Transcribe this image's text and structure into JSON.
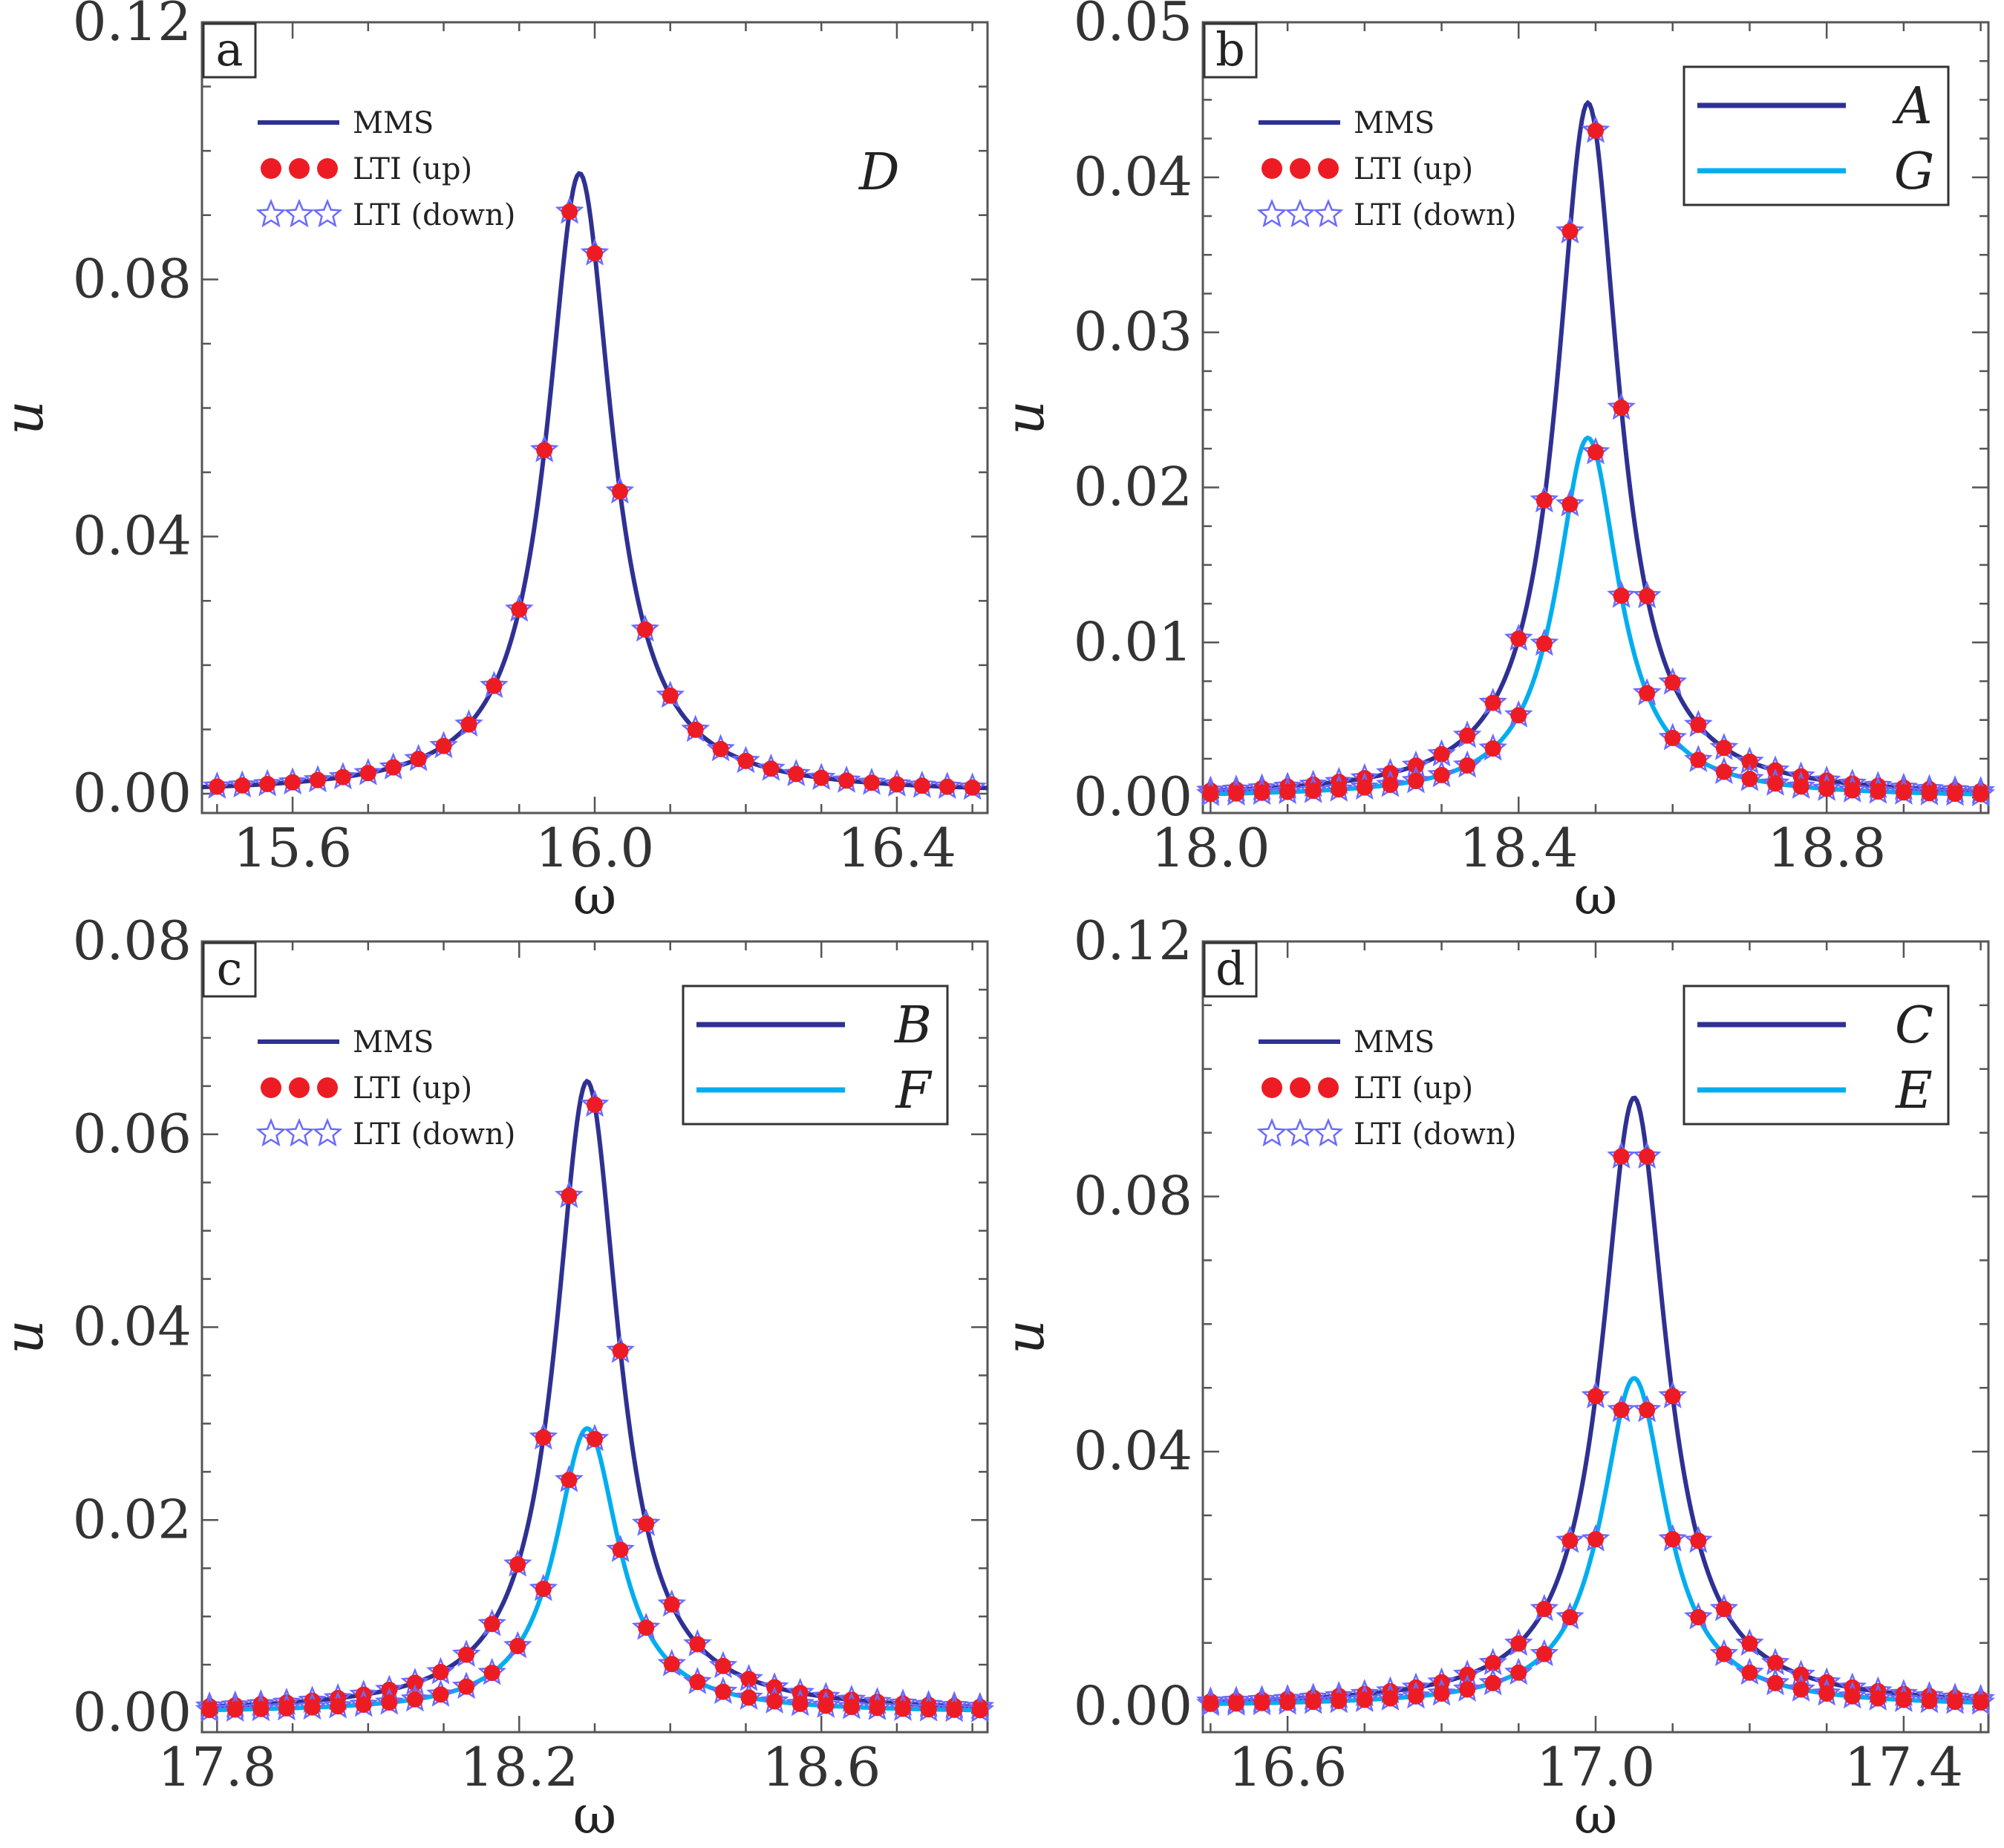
{
  "figure": {
    "colors": {
      "dark": "#2e3192",
      "light": "#00aeef",
      "dot": "#ed1c24",
      "star": "#6b6bff",
      "axis": "#555555"
    },
    "legend": {
      "mms": "MMS",
      "up": "LTI (up)",
      "down": "LTI (down)"
    }
  },
  "chart_data": [
    {
      "id": "a",
      "type": "line",
      "panel_label": "a",
      "xlabel": "ω",
      "ylabel": "u",
      "xlim": [
        15.48,
        16.52
      ],
      "ylim": [
        -0.003,
        0.12
      ],
      "xticks": [
        15.6,
        16.0,
        16.4
      ],
      "xtick_labels": [
        "15.6",
        "16.0",
        "16.4"
      ],
      "yticks": [
        0,
        0.04,
        0.08,
        0.12
      ],
      "ytick_labels": [
        "0.00",
        "0.04",
        "0.08",
        "0.12"
      ],
      "annotation": "D",
      "series": [
        {
          "name": "D",
          "color": "#2e3192",
          "peak_x": 15.98,
          "peak_y": 0.0965,
          "half_width": 0.052,
          "base": 0.0
        }
      ],
      "markers": {
        "x_start": 15.5,
        "x_end": 16.5,
        "count": 31
      },
      "curve_legend": []
    },
    {
      "id": "b",
      "type": "line",
      "panel_label": "b",
      "xlabel": "ω",
      "ylabel": "u",
      "xlim": [
        17.99,
        19.01
      ],
      "ylim": [
        -0.001,
        0.05
      ],
      "xticks": [
        18.0,
        18.4,
        18.8
      ],
      "xtick_labels": [
        "18.0",
        "18.4",
        "18.8"
      ],
      "yticks": [
        0,
        0.01,
        0.02,
        0.03,
        0.04,
        0.05
      ],
      "ytick_labels": [
        "0.00",
        "0.01",
        "0.02",
        "0.03",
        "0.04",
        "0.05"
      ],
      "series": [
        {
          "name": "A",
          "color": "#2e3192",
          "peak_x": 18.49,
          "peak_y": 0.0448,
          "half_width": 0.049,
          "base": 0.0
        },
        {
          "name": "G",
          "color": "#00aeef",
          "peak_x": 18.49,
          "peak_y": 0.0232,
          "half_width": 0.049,
          "base": 0.0
        }
      ],
      "markers": {
        "x_start": 18.0,
        "x_end": 19.0,
        "count": 31
      },
      "curve_legend": [
        {
          "label": "A",
          "color": "#2e3192"
        },
        {
          "label": "G",
          "color": "#00aeef"
        }
      ]
    },
    {
      "id": "c",
      "type": "line",
      "panel_label": "c",
      "xlabel": "ω",
      "ylabel": "u",
      "xlim": [
        17.78,
        18.82
      ],
      "ylim": [
        -0.002,
        0.08
      ],
      "xticks": [
        17.8,
        18.2,
        18.6
      ],
      "xtick_labels": [
        "17.8",
        "18.2",
        "18.6"
      ],
      "yticks": [
        0,
        0.02,
        0.04,
        0.06,
        0.08
      ],
      "ytick_labels": [
        "0.00",
        "0.02",
        "0.04",
        "0.06",
        "0.08"
      ],
      "series": [
        {
          "name": "B",
          "color": "#2e3192",
          "peak_x": 18.29,
          "peak_y": 0.0655,
          "half_width": 0.051,
          "base": 0.0
        },
        {
          "name": "F",
          "color": "#00aeef",
          "peak_x": 18.29,
          "peak_y": 0.0295,
          "half_width": 0.051,
          "base": 0.0
        }
      ],
      "markers": {
        "x_start": 17.79,
        "x_end": 18.81,
        "count": 31
      },
      "curve_legend": [
        {
          "label": "B",
          "color": "#2e3192"
        },
        {
          "label": "F",
          "color": "#00aeef"
        }
      ]
    },
    {
      "id": "d",
      "type": "line",
      "panel_label": "d",
      "xlabel": "ω",
      "ylabel": "u",
      "xlim": [
        16.49,
        17.51
      ],
      "ylim": [
        -0.004,
        0.12
      ],
      "xticks": [
        16.6,
        17.0,
        17.4
      ],
      "xtick_labels": [
        "16.6",
        "17.0",
        "17.4"
      ],
      "yticks": [
        0,
        0.04,
        0.08,
        0.12
      ],
      "ytick_labels": [
        "0.00",
        "0.04",
        "0.08",
        "0.12"
      ],
      "series": [
        {
          "name": "C",
          "color": "#2e3192",
          "peak_x": 17.05,
          "peak_y": 0.0955,
          "half_width": 0.051,
          "base": 0.0
        },
        {
          "name": "E",
          "color": "#00aeef",
          "peak_x": 17.05,
          "peak_y": 0.0515,
          "half_width": 0.051,
          "base": 0.0
        }
      ],
      "markers": {
        "x_start": 16.5,
        "x_end": 17.5,
        "count": 31
      },
      "curve_legend": [
        {
          "label": "C",
          "color": "#2e3192"
        },
        {
          "label": "E",
          "color": "#00aeef"
        }
      ]
    }
  ]
}
